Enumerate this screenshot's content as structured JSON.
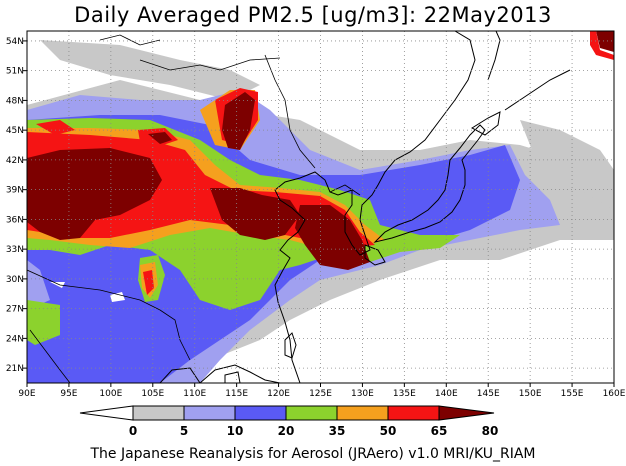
{
  "title": "Daily Averaged PM2.5 [ug/m3]: 22May2013",
  "footer": "The Japanese Reanalysis for Aerosol (JRAero) v1.0 MRI/KU_RIAM",
  "map": {
    "lon_range": [
      90,
      160
    ],
    "lat_range": [
      19.5,
      55
    ],
    "x_ticks": [
      "90E",
      "95E",
      "100E",
      "105E",
      "110E",
      "115E",
      "120E",
      "125E",
      "130E",
      "135E",
      "140E",
      "145E",
      "150E",
      "155E",
      "160E"
    ],
    "y_ticks": [
      "54N",
      "51N",
      "48N",
      "45N",
      "42N",
      "39N",
      "36N",
      "33N",
      "30N",
      "27N",
      "24N",
      "21N"
    ],
    "grid": "dotted"
  },
  "colorbar": {
    "levels": [
      "0",
      "5",
      "10",
      "20",
      "35",
      "50",
      "65",
      "80"
    ],
    "colors": [
      "#ffffff",
      "#c8c8c8",
      "#a0a0f0",
      "#5a5af5",
      "#8cd22d",
      "#f5a01e",
      "#f51414",
      "#7d0000"
    ]
  }
}
